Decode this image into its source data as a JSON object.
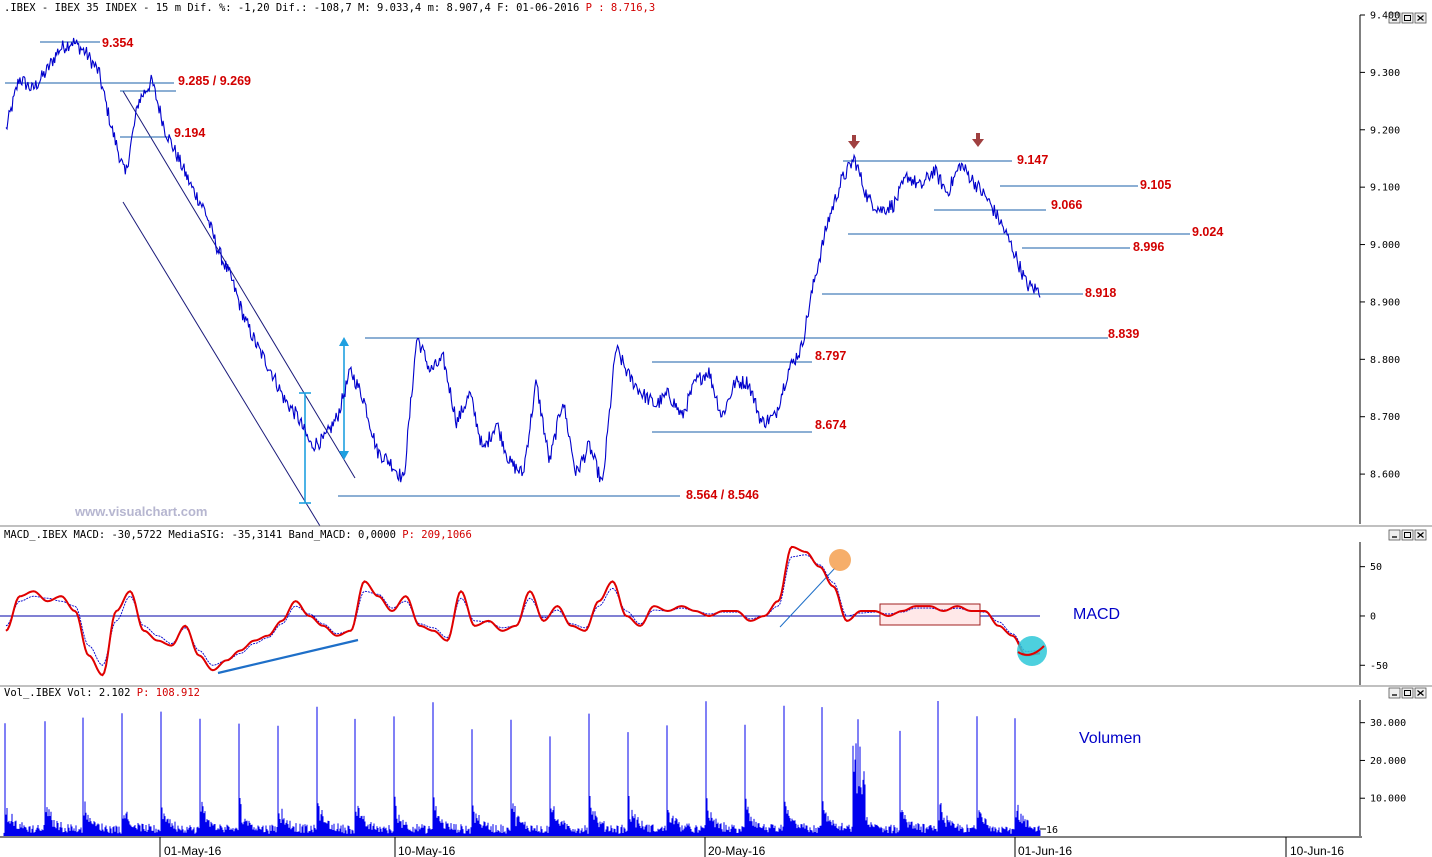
{
  "price_panel": {
    "header": {
      "name": ".IBEX - IBEX 35 INDEX -",
      "interval": "15 m",
      "stats": "Dif. %: -1,20 Dif.: -108,7 M: 9.033,4 m: 8.907,4 F: 01-06-2016",
      "last_label": "P : 8.716,3"
    },
    "watermark": "www.visualchart.com",
    "levels": [
      "9.354",
      "9.285 / 9.269",
      "9.194",
      "9.147",
      "9.105",
      "9.066",
      "9.024",
      "8.996",
      "8.918",
      "8.839",
      "8.797",
      "8.674",
      "8.564 / 8.546"
    ]
  },
  "macd_panel": {
    "header": {
      "name": "MACD_.IBEX",
      "values": "MACD: -30,5722 MediaSIG: -35,3141 Band_MACD: 0,0000",
      "last_label": "P: 209,1066"
    },
    "title": "MACD"
  },
  "volume_panel": {
    "header": {
      "name": "Vol_.IBEX",
      "values": "Vol: 2.102",
      "last_label": "P: 108.912"
    },
    "title": "Volumen",
    "edge_label": "16"
  },
  "x_axis_dates": [
    "01-May-16",
    "10-May-16",
    "20-May-16",
    "01-Jun-16",
    "10-Jun-16"
  ],
  "colors": {
    "price": "#0000cc",
    "macd": "#e00000",
    "signal": "#0000cc",
    "levels_text": "#d20000",
    "level_lines": "#1a5fa8",
    "volume": "#0000ee"
  },
  "chart_data": [
    {
      "type": "line",
      "title": "IBEX 35 INDEX 15 m",
      "ylim": [
        8520,
        9400
      ],
      "y_ticks": [
        "9.400",
        "9.300",
        "9.200",
        "9.100",
        "9.000",
        "8.900",
        "8.800",
        "8.700",
        "8.600"
      ],
      "series": [
        {
          "values": [
            9200,
            9290,
            9270,
            9300,
            9340,
            9354,
            9335,
            9300,
            9200,
            9120,
            9250,
            9285,
            9200,
            9150,
            9100,
            9060,
            8990,
            8940,
            8870,
            8820,
            8780,
            8730,
            8700,
            8650,
            8660,
            8700,
            8780,
            8730,
            8640,
            8620,
            8590,
            8840,
            8780,
            8800,
            8690,
            8740,
            8640,
            8690,
            8620,
            8600,
            8760,
            8620,
            8730,
            8600,
            8650,
            8580,
            8820,
            8770,
            8740,
            8720,
            8740,
            8700,
            8760,
            8780,
            8700,
            8760,
            8760,
            8690,
            8700,
            8780,
            8820,
            8940,
            9040,
            9110,
            9150,
            9080,
            9060,
            9070,
            9120,
            9100,
            9130,
            9090,
            9140,
            9110,
            9080,
            9040,
            8990,
            8930,
            8918
          ]
        }
      ]
    },
    {
      "type": "line",
      "title": "MACD",
      "ylim": [
        -70,
        75
      ],
      "y_ticks": [
        "50",
        "0",
        "-50"
      ],
      "series": [
        {
          "name": "MACD",
          "values": [
            -15,
            20,
            25,
            15,
            20,
            5,
            -40,
            -60,
            5,
            25,
            -15,
            -25,
            -30,
            -10,
            -40,
            -55,
            -45,
            -35,
            -25,
            -20,
            -5,
            15,
            0,
            -10,
            -20,
            -15,
            35,
            20,
            5,
            20,
            -10,
            -15,
            -25,
            25,
            -10,
            -5,
            -15,
            -10,
            25,
            -5,
            10,
            -10,
            -15,
            15,
            35,
            0,
            -10,
            10,
            5,
            10,
            5,
            0,
            5,
            5,
            -5,
            0,
            15,
            70,
            65,
            50,
            30,
            -5,
            5,
            5,
            0,
            5,
            10,
            10,
            5,
            10,
            5,
            5,
            -10,
            -20,
            -40,
            -38
          ]
        },
        {
          "name": "MediaSIG",
          "values": [
            -10,
            15,
            20,
            18,
            15,
            10,
            -30,
            -50,
            -5,
            20,
            -10,
            -20,
            -28,
            -12,
            -35,
            -50,
            -45,
            -38,
            -28,
            -22,
            -8,
            10,
            2,
            -8,
            -18,
            -15,
            25,
            22,
            8,
            15,
            -8,
            -12,
            -22,
            18,
            -5,
            -6,
            -12,
            -10,
            18,
            -2,
            6,
            -8,
            -12,
            10,
            28,
            5,
            -8,
            6,
            5,
            8,
            5,
            2,
            4,
            4,
            -3,
            0,
            10,
            60,
            62,
            52,
            34,
            0,
            3,
            4,
            2,
            4,
            8,
            8,
            6,
            8,
            5,
            4,
            -6,
            -18,
            -36,
            -35
          ]
        }
      ]
    },
    {
      "type": "bar",
      "title": "Volumen",
      "ylim": [
        0,
        36000
      ],
      "y_ticks": [
        "30.000",
        "20.000",
        "10.000"
      ]
    }
  ]
}
